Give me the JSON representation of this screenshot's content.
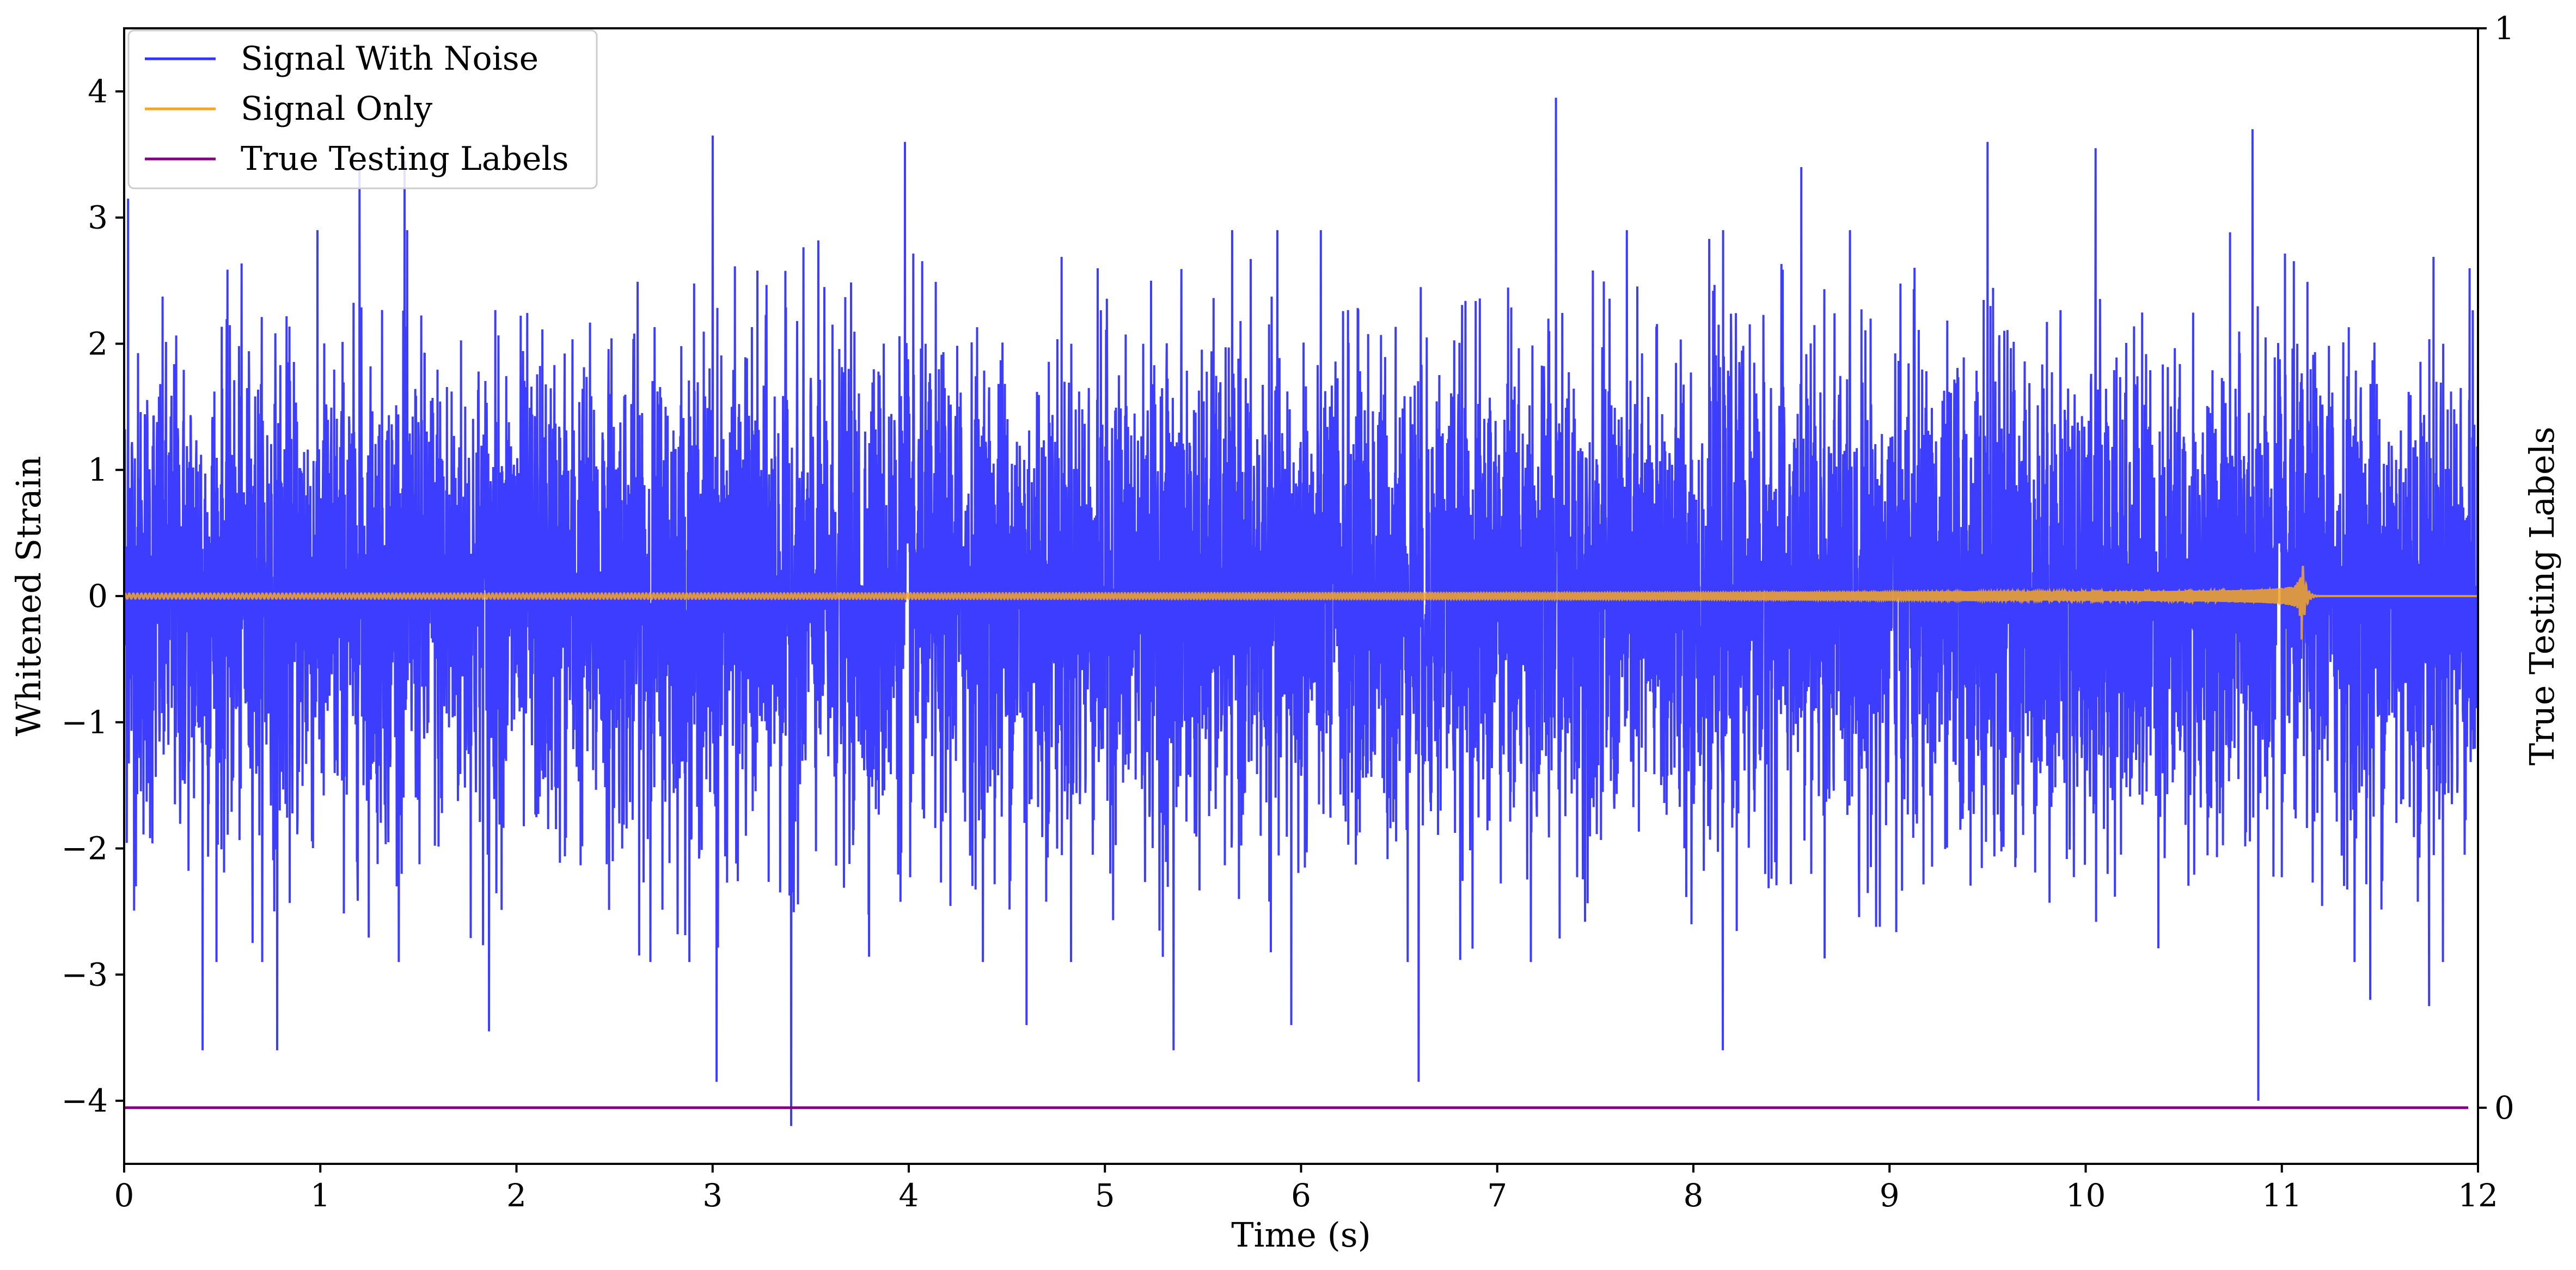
{
  "chart_data": {
    "type": "line",
    "title": "",
    "xlabel": "Time (s)",
    "ylabel": "Whitened Strain",
    "y2label": "True Testing Labels",
    "xlim": [
      0,
      12
    ],
    "ylim": [
      -4.5,
      4.5
    ],
    "y2lim": [
      -0.052,
      1.0
    ],
    "x_ticks": [
      "0",
      "1",
      "2",
      "3",
      "4",
      "5",
      "6",
      "7",
      "8",
      "9",
      "10",
      "11",
      "12"
    ],
    "y_ticks": [
      "−4",
      "−3",
      "−2",
      "−1",
      "0",
      "1",
      "2",
      "3",
      "4"
    ],
    "y2_ticks": [
      "0",
      "1"
    ],
    "grid": false,
    "legend_position": "top-left",
    "series": [
      {
        "name": "Signal With Noise",
        "color": "#3333ff",
        "description_peaks": {
          "x": [
            0.02,
            0.06,
            0.4,
            0.78,
            1.2,
            1.43,
            1.86,
            3.0,
            3.02,
            3.4,
            3.98,
            4.6,
            5.35,
            5.95,
            6.6,
            7.3,
            8.15,
            8.55,
            9.5,
            10.05,
            10.85,
            10.88,
            11.45,
            11.75
          ],
          "y": [
            3.15,
            -2.3,
            -3.6,
            -3.6,
            3.4,
            3.45,
            -3.45,
            3.65,
            -3.85,
            -4.2,
            3.6,
            -3.4,
            -3.6,
            -3.4,
            -3.85,
            3.95,
            -3.6,
            3.4,
            3.6,
            3.55,
            3.7,
            -4.0,
            -3.2,
            -3.25
          ]
        },
        "envelope": 1.35,
        "end_x": 12.0
      },
      {
        "name": "Signal Only",
        "color": "#f5a623",
        "chirp": {
          "t_start": 0.0,
          "t_merge": 11.1,
          "peak_amp": 0.5,
          "min_amp": -0.38,
          "initial_amp": 0.02,
          "initial_freq_hz": 30
        }
      },
      {
        "name": "True Testing Labels",
        "color": "#800080",
        "axis": "right",
        "x": [
          0,
          11.95
        ],
        "y": [
          0,
          0
        ]
      }
    ]
  }
}
